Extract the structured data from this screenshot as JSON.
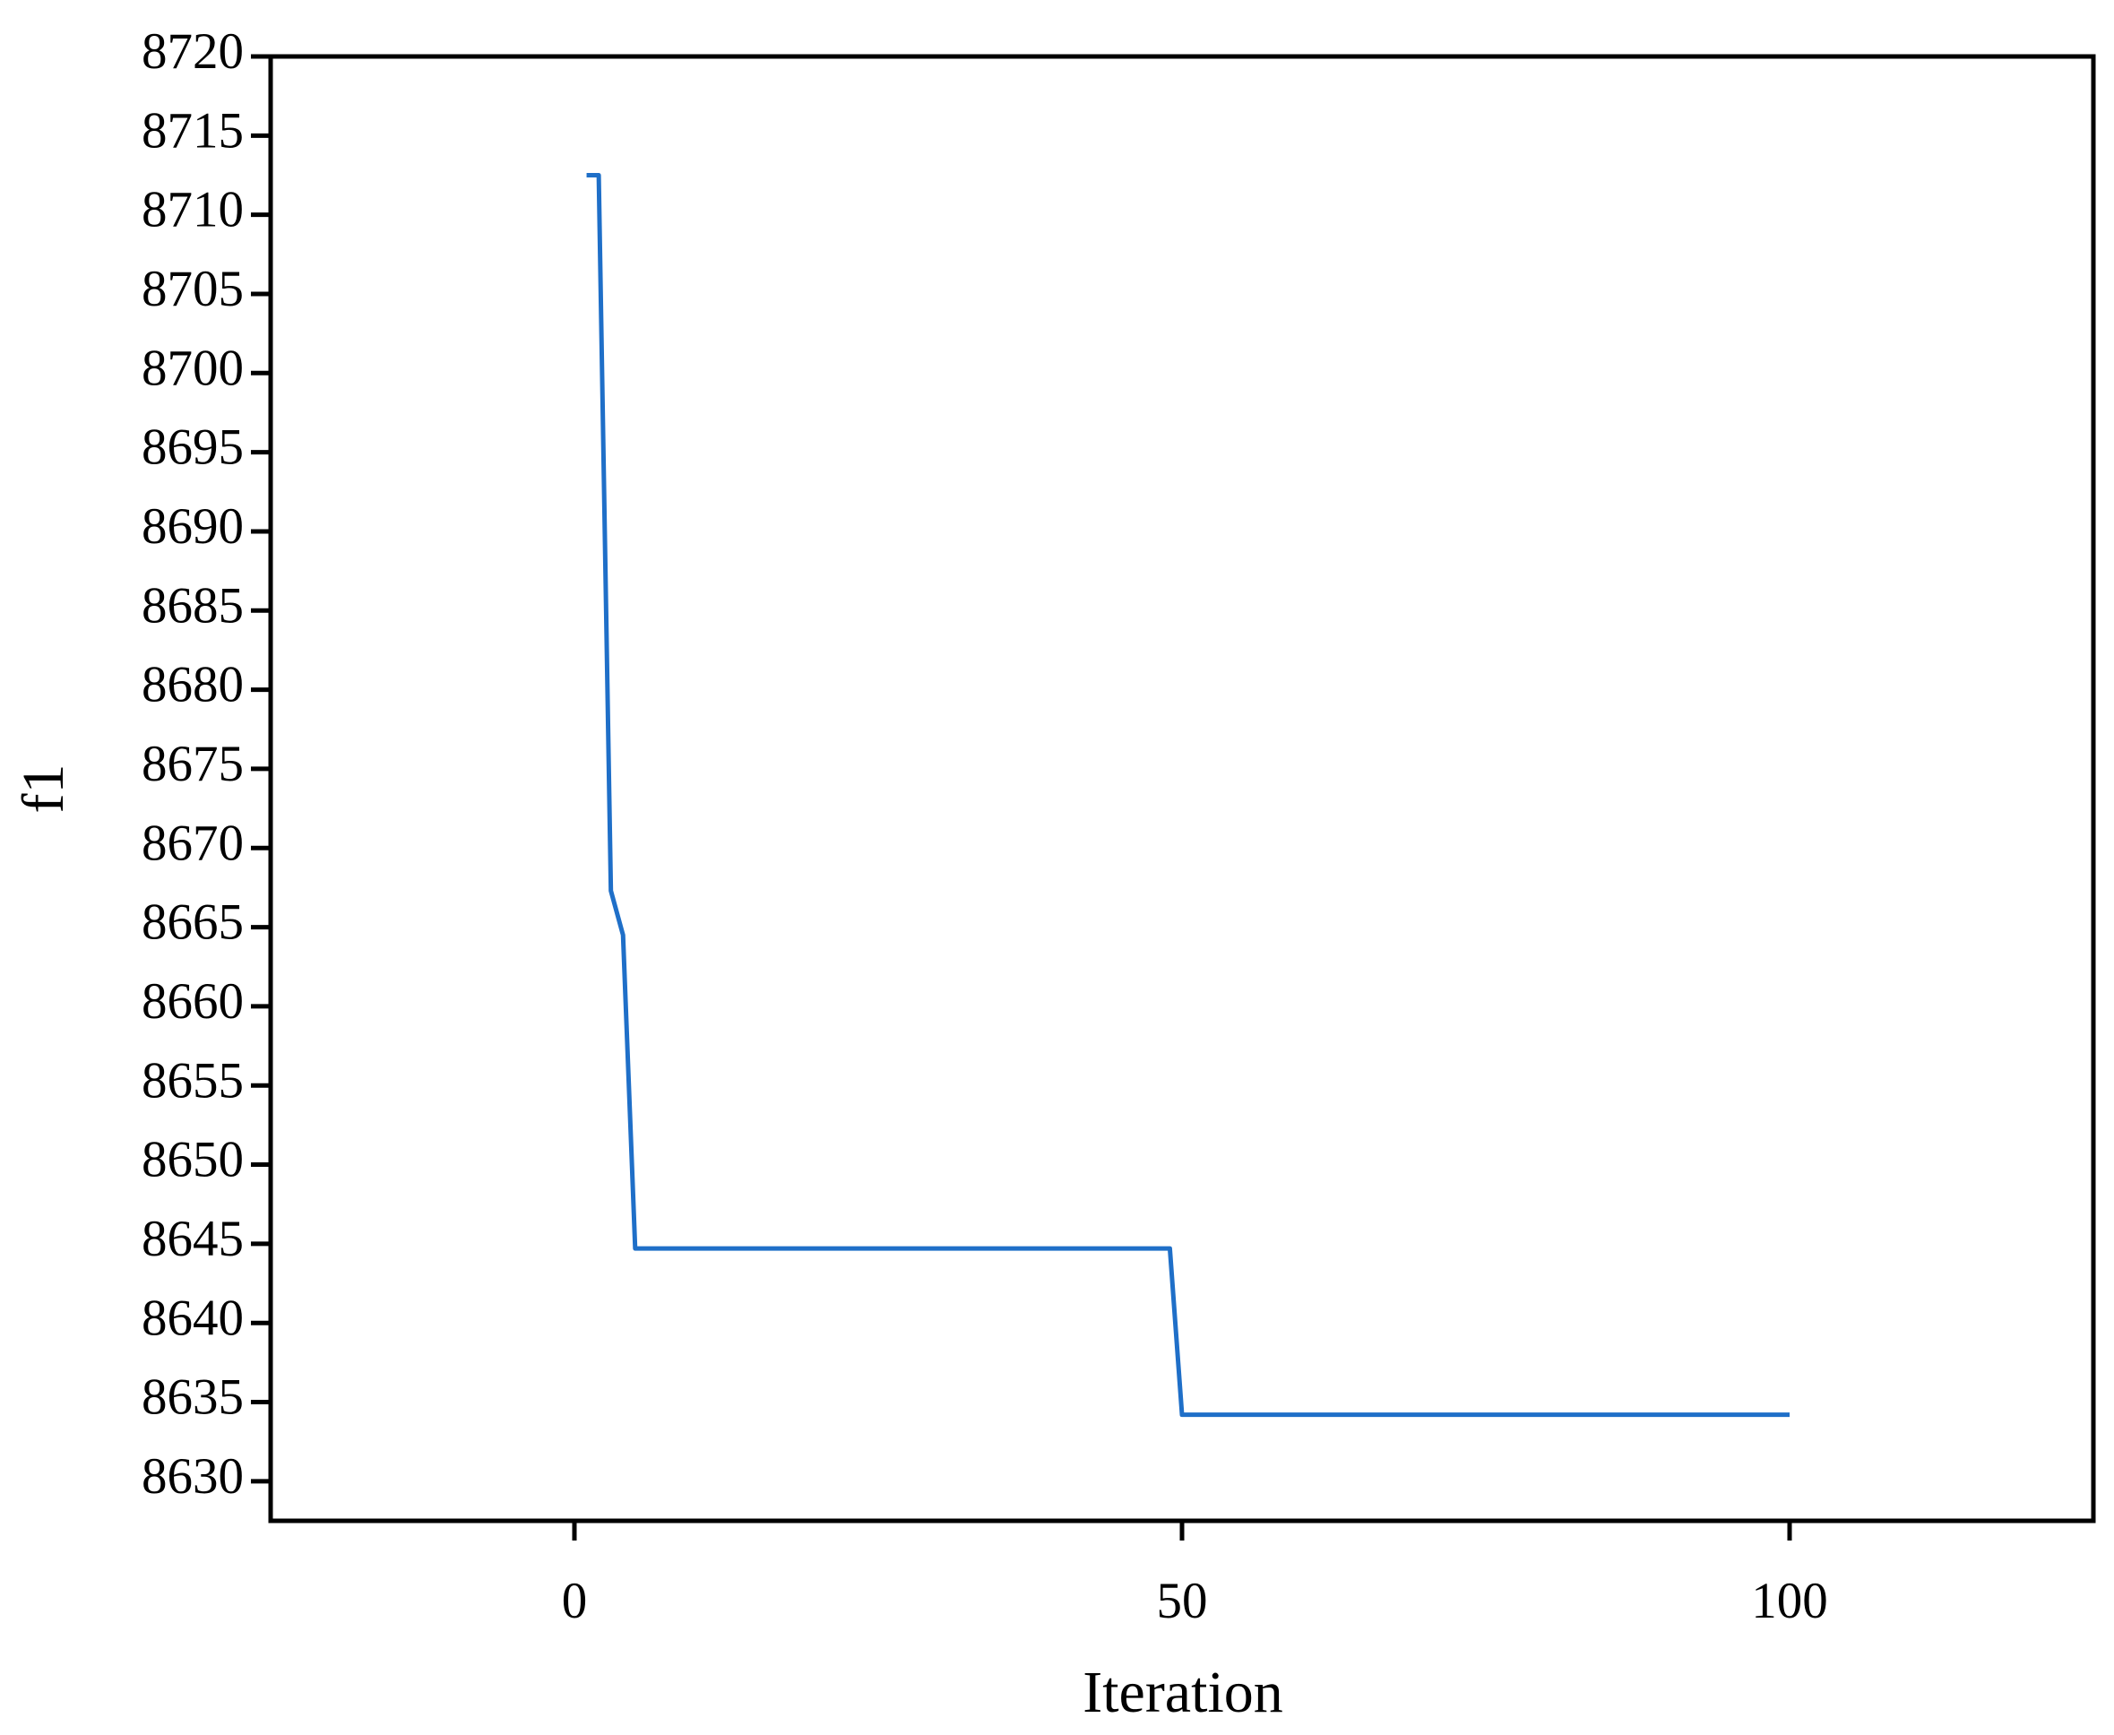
{
  "chart_data": {
    "type": "line",
    "x_label": "Iteration",
    "y_label": "f1",
    "x": [
      1,
      2,
      3,
      4,
      5,
      49,
      50,
      100
    ],
    "series": [
      {
        "color": "#1f6fc8",
        "values": [
          8712.5,
          8712.5,
          8667.3,
          8664.5,
          8644.7,
          8644.7,
          8634.2,
          8634.2
        ]
      }
    ],
    "xlim": [
      -25,
      125
    ],
    "xticks": [
      0,
      50,
      100
    ],
    "ylim": [
      8627.5,
      8720
    ],
    "yticks": [
      8630,
      8635,
      8640,
      8645,
      8650,
      8655,
      8660,
      8665,
      8670,
      8675,
      8680,
      8685,
      8690,
      8695,
      8700,
      8705,
      8710,
      8715,
      8720
    ],
    "grid": false
  }
}
